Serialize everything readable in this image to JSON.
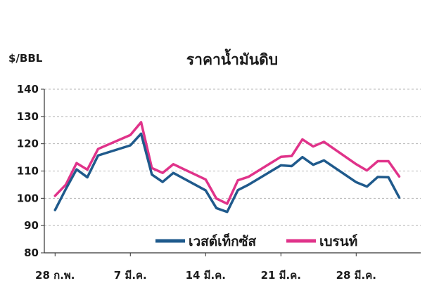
{
  "chart_data": {
    "type": "line",
    "title": "ราคาน้ำมันดิบ",
    "ylabel": "$/BBL",
    "ylim": [
      80,
      140
    ],
    "yticks": [
      80,
      90,
      100,
      110,
      120,
      130,
      140
    ],
    "x_tick_labels": [
      "28 ก.พ.",
      "7 มี.ค.",
      "14 มี.ค.",
      "21 มี.ค.",
      "28 มี.ค."
    ],
    "x_tick_index": [
      0,
      7,
      14,
      21,
      28
    ],
    "x_range": [
      -1,
      34
    ],
    "grid": "horizontal-dashed",
    "legend_position": "bottom-center",
    "series": [
      {
        "name": "เวสต์เท็กซัส",
        "color": "#1f5a8c",
        "x": [
          0,
          1,
          2,
          3,
          4,
          7,
          8,
          9,
          10,
          11,
          14,
          15,
          16,
          17,
          18,
          21,
          22,
          23,
          24,
          25,
          28,
          29,
          30,
          31,
          32
        ],
        "values": [
          95.7,
          103.4,
          110.6,
          107.7,
          115.7,
          119.4,
          123.7,
          108.7,
          106.0,
          109.3,
          102.9,
          96.4,
          95.0,
          103.0,
          105.0,
          112.1,
          111.8,
          115.1,
          112.3,
          113.9,
          105.9,
          104.3,
          107.8,
          107.7,
          100.3
        ]
      },
      {
        "name": "เบรนท์",
        "color": "#e0338a",
        "x": [
          0,
          1,
          2,
          3,
          4,
          7,
          8,
          9,
          10,
          11,
          14,
          15,
          16,
          17,
          18,
          21,
          22,
          23,
          24,
          25,
          28,
          29,
          30,
          31,
          32
        ],
        "values": [
          100.9,
          105.0,
          112.9,
          110.5,
          118.1,
          123.2,
          127.9,
          111.1,
          109.3,
          112.5,
          106.9,
          99.9,
          98.0,
          106.6,
          107.9,
          115.2,
          115.5,
          121.6,
          119.0,
          120.7,
          112.5,
          110.2,
          113.6,
          113.6,
          108.0
        ]
      }
    ]
  }
}
